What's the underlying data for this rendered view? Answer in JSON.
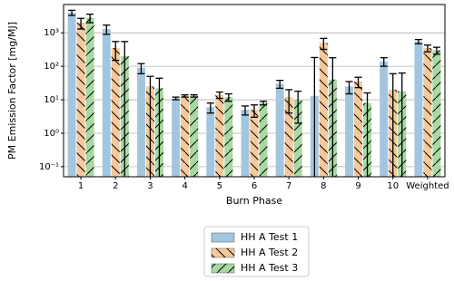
{
  "chart_data": {
    "type": "bar",
    "ylabel": "PM Emission Factor [mg/MJ]",
    "xlabel": "Burn Phase",
    "categories": [
      "1",
      "2",
      "3",
      "4",
      "5",
      "6",
      "7",
      "8",
      "9",
      "10",
      "Weighted"
    ],
    "ylog": true,
    "grid": true,
    "legend": "bottom",
    "ylim": [
      0.05,
      7000
    ],
    "yticks": [
      {
        "value": 0.1,
        "label": "10⁻¹"
      },
      {
        "value": 1,
        "label": "10⁰"
      },
      {
        "value": 10,
        "label": "10¹"
      },
      {
        "value": 100,
        "label": "10²"
      },
      {
        "value": 1000,
        "label": "10³"
      }
    ],
    "series": [
      {
        "name": "HH A Test 1",
        "color": "#a3c6e0",
        "values": [
          4000,
          1300,
          90,
          11,
          6,
          5,
          30,
          13,
          25,
          140,
          550
        ],
        "errors": [
          700,
          400,
          30,
          1,
          2,
          1.5,
          8,
          170,
          10,
          40,
          80
        ]
      },
      {
        "name": "HH A Test 2",
        "color": "#f5c99b",
        "hatch": "\\",
        "values": [
          2000,
          350,
          25,
          13,
          14,
          5,
          12,
          500,
          35,
          20,
          350
        ],
        "errors": [
          700,
          200,
          25,
          1,
          3,
          2,
          8,
          180,
          12,
          40,
          80
        ]
      },
      {
        "name": "HH A Test 3",
        "color": "#a9d9a3",
        "hatch": "/",
        "values": [
          2800,
          200,
          22,
          13,
          12,
          8,
          10,
          40,
          8,
          18,
          300
        ],
        "errors": [
          800,
          350,
          22,
          1,
          3,
          1,
          8,
          140,
          8,
          45,
          70
        ]
      }
    ]
  }
}
